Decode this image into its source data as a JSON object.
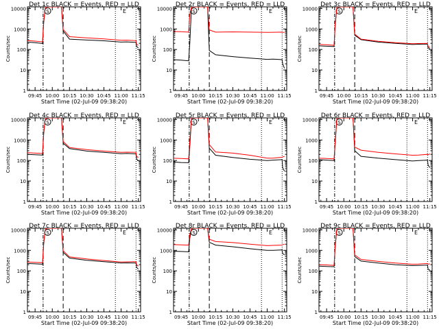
{
  "figure": {
    "xlabel": "Start Time (02-Jul-09 09:38:20)",
    "ylabel": "Counts/sec",
    "x_ticks": [
      "09:45",
      "10:00",
      "10:15",
      "10:30",
      "10:45",
      "11:00",
      "11:15"
    ],
    "y_ticks": [
      "1",
      "10",
      "100",
      "1000",
      "10000"
    ],
    "markers": {
      "s_label": "S",
      "e_label": "E"
    },
    "colors": {
      "events": "#000000",
      "lld": "#ff0000",
      "axes": "#000000"
    }
  },
  "chart_data": [
    {
      "type": "line",
      "title": "Det 1c BLACK = Events, RED = LLD",
      "xlim": [
        "09:38:20",
        "11:17:00"
      ],
      "ylim": [
        1,
        12000
      ],
      "yscale": "log",
      "vlines": {
        "dashdot": "09:52:00",
        "dash": "10:09:30",
        "dot": [
          "10:55:00",
          "11:13:00"
        ]
      },
      "s_marker": "09:56:00",
      "e_marker": "11:03:00",
      "series": [
        {
          "name": "Events",
          "x": [
            "09:38:20",
            "09:45:00",
            "09:51:30",
            "09:52:30",
            "09:54:00",
            "10:08:00",
            "10:09:30",
            "10:15:00",
            "10:30:00",
            "10:45:00",
            "11:00:00",
            "11:05:00",
            "11:13:00",
            "11:13:30",
            "11:15:00"
          ],
          "y": [
            230,
            215,
            195,
            2000,
            12000,
            12000,
            800,
            320,
            290,
            265,
            230,
            235,
            220,
            140,
            120
          ]
        },
        {
          "name": "LLD",
          "x": [
            "09:38:20",
            "09:45:00",
            "09:51:30",
            "09:52:30",
            "09:54:00",
            "10:08:00",
            "10:09:30",
            "10:15:00",
            "10:30:00",
            "10:45:00",
            "11:00:00",
            "11:05:00",
            "11:13:00",
            "11:13:30",
            "11:15:00"
          ],
          "y": [
            270,
            255,
            235,
            2400,
            12000,
            12000,
            950,
            420,
            370,
            330,
            280,
            285,
            270,
            180,
            160
          ]
        }
      ]
    },
    {
      "type": "line",
      "title": "Det 2r BLACK = Events, RED = LLD",
      "xlim": [
        "09:38:20",
        "11:17:00"
      ],
      "ylim": [
        1,
        12000
      ],
      "yscale": "log",
      "vlines": {
        "dashdot": "09:52:00",
        "dash": "10:09:30",
        "dot": [
          "10:55:00",
          "11:13:00"
        ]
      },
      "s_marker": "09:56:00",
      "e_marker": "11:03:00",
      "series": [
        {
          "name": "Events",
          "x": [
            "09:38:20",
            "09:45:00",
            "09:51:30",
            "09:52:30",
            "09:54:00",
            "10:08:00",
            "10:09:30",
            "10:15:00",
            "10:30:00",
            "10:45:00",
            "11:00:00",
            "11:05:00",
            "11:13:00",
            "11:13:30",
            "11:15:00"
          ],
          "y": [
            32,
            30,
            28,
            200,
            12000,
            12000,
            90,
            55,
            45,
            38,
            33,
            34,
            32,
            20,
            12
          ]
        },
        {
          "name": "LLD",
          "x": [
            "09:38:20",
            "09:45:00",
            "09:51:30",
            "09:52:30",
            "09:54:00",
            "10:08:00",
            "10:09:30",
            "10:15:00",
            "10:30:00",
            "10:45:00",
            "11:00:00",
            "11:05:00",
            "11:13:00",
            "11:13:30",
            "11:15:00"
          ],
          "y": [
            750,
            740,
            700,
            5000,
            12000,
            12000,
            900,
            700,
            720,
            700,
            680,
            690,
            700,
            690,
            680
          ]
        }
      ]
    },
    {
      "type": "line",
      "title": "Det 3c BLACK = Events, RED = LLD",
      "xlim": [
        "09:38:20",
        "11:17:00"
      ],
      "ylim": [
        1,
        12000
      ],
      "yscale": "log",
      "vlines": {
        "dashdot": "09:52:00",
        "dash": "10:09:30",
        "dot": [
          "10:55:00",
          "11:13:00"
        ]
      },
      "s_marker": "09:56:00",
      "e_marker": "11:03:00",
      "series": [
        {
          "name": "Events",
          "x": [
            "09:38:20",
            "09:45:00",
            "09:51:30",
            "09:52:30",
            "09:54:00",
            "10:08:00",
            "10:09:30",
            "10:15:00",
            "10:30:00",
            "10:45:00",
            "11:00:00",
            "11:05:00",
            "11:13:00",
            "11:13:30",
            "11:15:00"
          ],
          "y": [
            150,
            145,
            140,
            1500,
            12000,
            12000,
            500,
            300,
            230,
            200,
            175,
            180,
            185,
            120,
            110
          ]
        },
        {
          "name": "LLD",
          "x": [
            "09:38:20",
            "09:45:00",
            "09:51:30",
            "09:52:30",
            "09:54:00",
            "10:08:00",
            "10:09:30",
            "10:15:00",
            "10:30:00",
            "10:45:00",
            "11:00:00",
            "11:05:00",
            "11:13:00",
            "11:13:30",
            "11:15:00"
          ],
          "y": [
            175,
            170,
            160,
            1800,
            12000,
            12000,
            560,
            320,
            250,
            215,
            190,
            195,
            200,
            140,
            125
          ]
        }
      ]
    },
    {
      "type": "line",
      "title": "Det 4c BLACK = Events, RED = LLD",
      "xlim": [
        "09:38:20",
        "11:17:00"
      ],
      "ylim": [
        1,
        12000
      ],
      "yscale": "log",
      "vlines": {
        "dashdot": "09:52:00",
        "dash": "10:09:30",
        "dot": [
          "10:55:00",
          "11:13:00"
        ]
      },
      "s_marker": "09:56:00",
      "e_marker": "11:03:00",
      "series": [
        {
          "name": "Events",
          "x": [
            "09:38:20",
            "09:45:00",
            "09:51:30",
            "09:52:30",
            "09:54:00",
            "10:08:00",
            "10:09:30",
            "10:15:00",
            "10:30:00",
            "10:45:00",
            "11:00:00",
            "11:05:00",
            "11:13:00",
            "11:13:30",
            "11:15:00"
          ],
          "y": [
            200,
            190,
            185,
            2000,
            12000,
            12000,
            700,
            380,
            290,
            250,
            215,
            220,
            210,
            120,
            95
          ]
        },
        {
          "name": "LLD",
          "x": [
            "09:38:20",
            "09:45:00",
            "09:51:30",
            "09:52:30",
            "09:54:00",
            "10:08:00",
            "10:09:30",
            "10:15:00",
            "10:30:00",
            "10:45:00",
            "11:00:00",
            "11:05:00",
            "11:13:00",
            "11:13:30",
            "11:15:00"
          ],
          "y": [
            240,
            230,
            220,
            2400,
            12000,
            12000,
            850,
            430,
            340,
            290,
            250,
            255,
            250,
            160,
            140
          ]
        }
      ]
    },
    {
      "type": "line",
      "title": "Det 5r BLACK = Events, RED = LLD",
      "xlim": [
        "09:38:20",
        "11:17:00"
      ],
      "ylim": [
        1,
        12000
      ],
      "yscale": "log",
      "vlines": {
        "dashdot": "09:52:00",
        "dash": "10:09:30",
        "dot": [
          "10:55:00",
          "11:13:00"
        ]
      },
      "s_marker": "09:56:00",
      "e_marker": "11:03:00",
      "series": [
        {
          "name": "Events",
          "x": [
            "09:38:20",
            "09:45:00",
            "09:51:30",
            "09:52:30",
            "09:54:00",
            "10:08:00",
            "10:09:30",
            "10:15:00",
            "10:30:00",
            "10:45:00",
            "11:00:00",
            "11:05:00",
            "11:13:00",
            "11:13:30",
            "11:15:00"
          ],
          "y": [
            85,
            80,
            78,
            500,
            12000,
            12000,
            400,
            180,
            140,
            115,
            100,
            105,
            110,
            45,
            30
          ]
        },
        {
          "name": "LLD",
          "x": [
            "09:38:20",
            "09:45:00",
            "09:51:30",
            "09:52:30",
            "09:54:00",
            "10:08:00",
            "10:09:30",
            "10:15:00",
            "10:30:00",
            "10:45:00",
            "11:00:00",
            "11:05:00",
            "11:13:00",
            "11:13:30",
            "11:15:00"
          ],
          "y": [
            130,
            125,
            120,
            900,
            12000,
            12000,
            600,
            260,
            230,
            180,
            130,
            130,
            145,
            150,
            160
          ]
        }
      ]
    },
    {
      "type": "line",
      "title": "Det 6r BLACK = Events, RED = LLD",
      "xlim": [
        "09:38:20",
        "11:17:00"
      ],
      "ylim": [
        1,
        12000
      ],
      "yscale": "log",
      "vlines": {
        "dashdot": "09:52:00",
        "dash": "10:09:30",
        "dot": [
          "10:55:00",
          "11:13:00"
        ]
      },
      "s_marker": "09:56:00",
      "e_marker": "11:03:00",
      "series": [
        {
          "name": "Events",
          "x": [
            "09:38:20",
            "09:45:00",
            "09:51:30",
            "09:52:30",
            "09:54:00",
            "10:08:00",
            "10:09:30",
            "10:15:00",
            "10:30:00",
            "10:45:00",
            "11:00:00",
            "11:05:00",
            "11:13:00",
            "11:13:30",
            "11:15:00"
          ],
          "y": [
            110,
            105,
            100,
            700,
            12000,
            12000,
            300,
            160,
            130,
            110,
            95,
            100,
            105,
            60,
            45
          ]
        },
        {
          "name": "LLD",
          "x": [
            "09:38:20",
            "09:45:00",
            "09:51:30",
            "09:52:30",
            "09:54:00",
            "10:08:00",
            "10:09:30",
            "10:15:00",
            "10:30:00",
            "10:45:00",
            "11:00:00",
            "11:05:00",
            "11:13:00",
            "11:13:30",
            "11:15:00"
          ],
          "y": [
            130,
            125,
            120,
            900,
            12000,
            12000,
            450,
            320,
            250,
            210,
            180,
            185,
            200,
            190,
            210
          ]
        }
      ]
    },
    {
      "type": "line",
      "title": "Det 7c BLACK = Events, RED = LLD",
      "xlim": [
        "09:38:20",
        "11:17:00"
      ],
      "ylim": [
        1,
        12000
      ],
      "yscale": "log",
      "vlines": {
        "dashdot": "09:52:00",
        "dash": "10:09:30",
        "dot": [
          "10:55:00",
          "11:13:00"
        ]
      },
      "s_marker": "09:56:00",
      "e_marker": "11:03:00",
      "series": [
        {
          "name": "Events",
          "x": [
            "09:38:20",
            "09:45:00",
            "09:51:30",
            "09:52:30",
            "09:54:00",
            "10:08:00",
            "10:09:30",
            "10:15:00",
            "10:30:00",
            "10:45:00",
            "11:00:00",
            "11:05:00",
            "11:13:00",
            "11:13:30",
            "11:15:00"
          ],
          "y": [
            230,
            220,
            210,
            2000,
            12000,
            12000,
            800,
            420,
            330,
            280,
            240,
            245,
            240,
            150,
            120
          ]
        },
        {
          "name": "LLD",
          "x": [
            "09:38:20",
            "09:45:00",
            "09:51:30",
            "09:52:30",
            "09:54:00",
            "10:08:00",
            "10:09:30",
            "10:15:00",
            "10:30:00",
            "10:45:00",
            "11:00:00",
            "11:05:00",
            "11:13:00",
            "11:13:30",
            "11:15:00"
          ],
          "y": [
            270,
            260,
            250,
            2400,
            12000,
            12000,
            950,
            480,
            380,
            320,
            270,
            275,
            280,
            200,
            170
          ]
        }
      ]
    },
    {
      "type": "line",
      "title": "Det 8r BLACK = Events, RED = LLD",
      "xlim": [
        "09:38:20",
        "11:17:00"
      ],
      "ylim": [
        1,
        12000
      ],
      "yscale": "log",
      "vlines": {
        "dashdot": "09:52:00",
        "dash": "10:09:30",
        "dot": [
          "10:55:00",
          "11:13:00"
        ]
      },
      "s_marker": "09:56:00",
      "e_marker": "11:03:00",
      "series": [
        {
          "name": "Events",
          "x": [
            "09:38:20",
            "09:45:00",
            "09:51:30",
            "09:52:30",
            "09:54:00",
            "10:08:00",
            "10:09:30",
            "10:15:00",
            "10:30:00",
            "10:45:00",
            "11:00:00",
            "11:05:00",
            "11:13:00",
            "11:13:30",
            "11:15:00"
          ],
          "y": [
            900,
            880,
            850,
            4000,
            12000,
            12000,
            2500,
            1800,
            1500,
            1200,
            1000,
            1000,
            1050,
            700,
            600
          ]
        },
        {
          "name": "LLD",
          "x": [
            "09:38:20",
            "09:45:00",
            "09:51:30",
            "09:52:30",
            "09:54:00",
            "10:08:00",
            "10:09:30",
            "10:15:00",
            "10:30:00",
            "10:45:00",
            "11:00:00",
            "11:05:00",
            "11:13:00",
            "11:13:30",
            "11:15:00"
          ],
          "y": [
            1900,
            1850,
            1800,
            6000,
            12000,
            12000,
            3500,
            2700,
            2400,
            2000,
            1700,
            1750,
            1800,
            1900,
            2000
          ]
        }
      ]
    },
    {
      "type": "line",
      "title": "Det 9c BLACK = Events, RED = LLD",
      "xlim": [
        "09:38:20",
        "11:17:00"
      ],
      "ylim": [
        1,
        12000
      ],
      "yscale": "log",
      "vlines": {
        "dashdot": "09:52:00",
        "dash": "10:09:30",
        "dot": [
          "10:55:00",
          "11:13:00"
        ]
      },
      "s_marker": "09:56:00",
      "e_marker": "11:03:00",
      "series": [
        {
          "name": "Events",
          "x": [
            "09:38:20",
            "09:45:00",
            "09:51:30",
            "09:52:30",
            "09:54:00",
            "10:08:00",
            "10:09:30",
            "10:15:00",
            "10:30:00",
            "10:45:00",
            "11:00:00",
            "11:05:00",
            "11:13:00",
            "11:13:30",
            "11:15:00"
          ],
          "y": [
            170,
            165,
            160,
            1500,
            12000,
            12000,
            500,
            300,
            240,
            200,
            180,
            185,
            190,
            120,
            110
          ]
        },
        {
          "name": "LLD",
          "x": [
            "09:38:20",
            "09:45:00",
            "09:51:30",
            "09:52:30",
            "09:54:00",
            "10:08:00",
            "10:09:30",
            "10:15:00",
            "10:30:00",
            "10:45:00",
            "11:00:00",
            "11:05:00",
            "11:13:00",
            "11:13:30",
            "11:15:00"
          ],
          "y": [
            200,
            195,
            185,
            1800,
            12000,
            12000,
            600,
            360,
            290,
            240,
            210,
            215,
            230,
            210,
            220
          ]
        }
      ]
    }
  ]
}
